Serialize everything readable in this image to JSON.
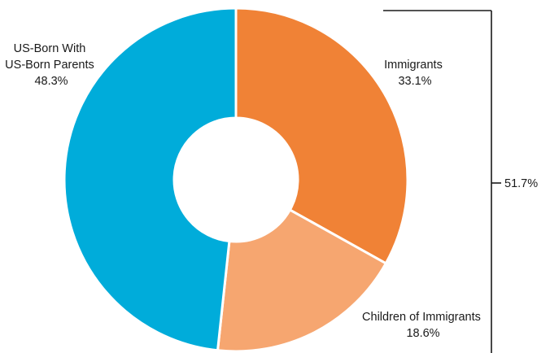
{
  "chart_data": {
    "type": "pie",
    "variant": "donut",
    "slices": [
      {
        "label_lines": [
          "Immigrants"
        ],
        "value": 33.1,
        "value_text": "33.1%",
        "color": "#F08236"
      },
      {
        "label_lines": [
          "Children of Immigrants"
        ],
        "value": 18.6,
        "value_text": "18.6%",
        "color": "#F6A670"
      },
      {
        "label_lines": [
          "US-Born With",
          "US-Born Parents"
        ],
        "value": 48.3,
        "value_text": "48.3%",
        "color": "#00ACDA"
      }
    ],
    "bracket": {
      "covers": [
        "Immigrants",
        "Children of Immigrants"
      ],
      "value_text": "51.7%"
    }
  }
}
